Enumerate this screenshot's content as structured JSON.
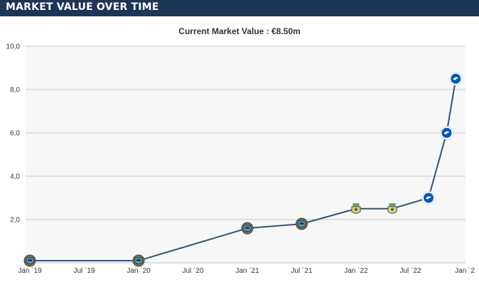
{
  "header": {
    "title": "MARKET VALUE OVER TIME"
  },
  "chart_data": {
    "type": "line",
    "title": "Current Market Value : €8.50m",
    "xlabel": "",
    "ylabel": "",
    "ylim": [
      0,
      10
    ],
    "y_ticks": [
      "2,0",
      "4,0",
      "6,0",
      "8,0",
      "10,0"
    ],
    "x_ticks": [
      "Jan ´19",
      "Jul ´19",
      "Jan ´20",
      "Jul ´20",
      "Jan ´21",
      "Jul ´21",
      "Jan ´22",
      "Jul ´22",
      "Jan ´2"
    ],
    "grid": true,
    "line_color": "#34507a",
    "series": [
      {
        "points": [
          {
            "x": "2019-01",
            "y": 0.1,
            "club_icon": "kawasaki-frontale-crest-icon"
          },
          {
            "x": "2020-01",
            "y": 0.1,
            "club_icon": "kawasaki-frontale-crest-icon"
          },
          {
            "x": "2021-01",
            "y": 1.6,
            "club_icon": "kawasaki-frontale-crest-icon"
          },
          {
            "x": "2021-07",
            "y": 1.8,
            "club_icon": "kawasaki-frontale-crest-icon"
          },
          {
            "x": "2022-01",
            "y": 2.5,
            "club_icon": "union-saint-gilloise-crest-icon"
          },
          {
            "x": "2022-05",
            "y": 2.5,
            "club_icon": "union-saint-gilloise-crest-icon"
          },
          {
            "x": "2022-09",
            "y": 3.0,
            "club_icon": "brighton-crest-icon"
          },
          {
            "x": "2022-11",
            "y": 6.0,
            "club_icon": "brighton-crest-icon"
          },
          {
            "x": "2022-12",
            "y": 8.5,
            "club_icon": "brighton-crest-icon"
          }
        ]
      }
    ]
  }
}
